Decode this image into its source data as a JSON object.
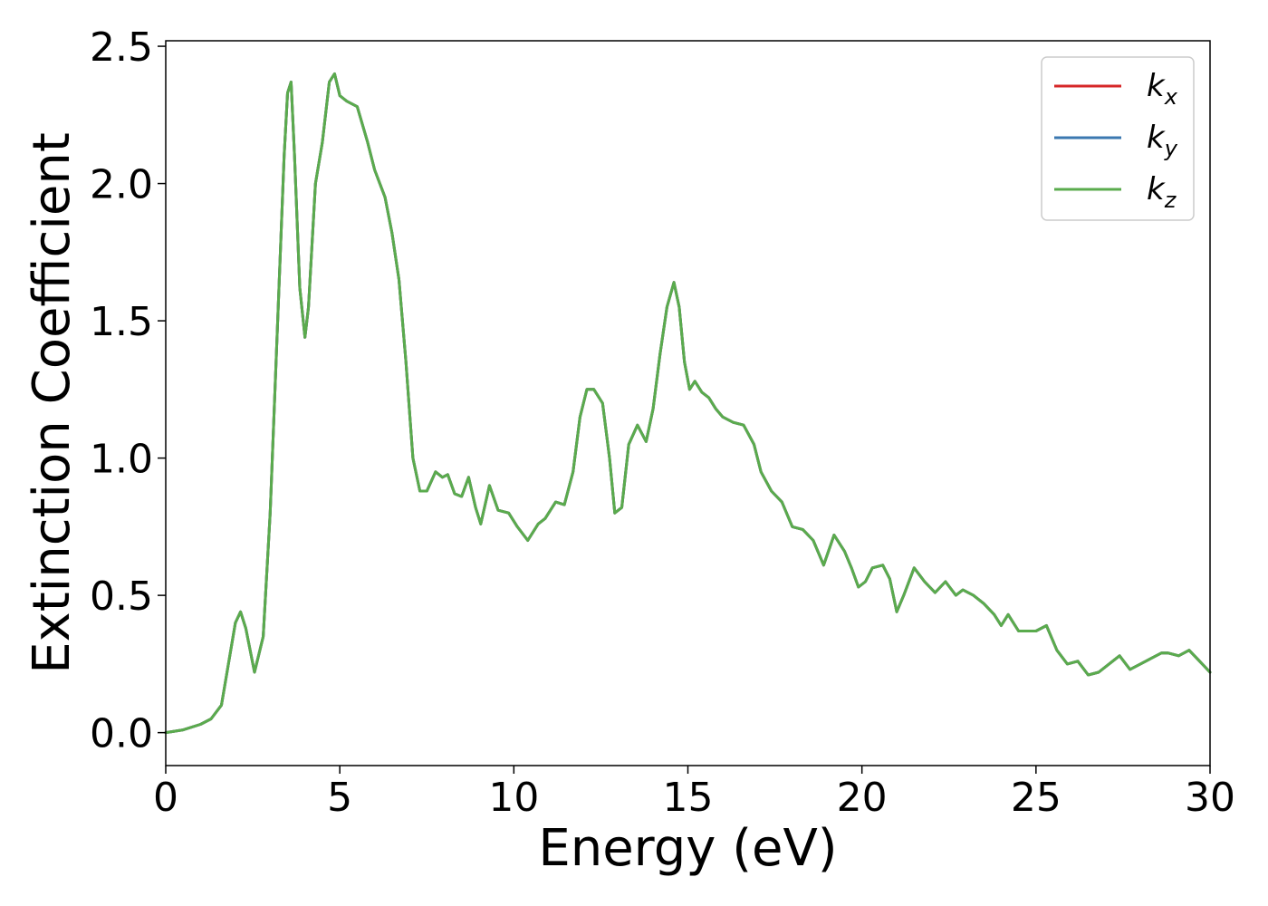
{
  "chart_data": {
    "type": "line",
    "title": "",
    "xlabel": "Energy (eV)",
    "ylabel": "Extinction Coefficient",
    "xlim": [
      0,
      30
    ],
    "ylim": [
      -0.12,
      2.52
    ],
    "xticks": [
      0,
      5,
      10,
      15,
      20,
      25,
      30
    ],
    "yticks": [
      0.0,
      0.5,
      1.0,
      1.5,
      2.0,
      2.5
    ],
    "xtick_labels": [
      "0",
      "5",
      "10",
      "15",
      "20",
      "25",
      "30"
    ],
    "ytick_labels": [
      "0.0",
      "0.5",
      "1.0",
      "1.5",
      "2.0",
      "2.5"
    ],
    "grid": false,
    "legend_position": "top-right",
    "x": [
      0,
      0.5,
      1.0,
      1.3,
      1.6,
      1.8,
      2.0,
      2.15,
      2.3,
      2.55,
      2.8,
      3.0,
      3.2,
      3.4,
      3.5,
      3.6,
      3.7,
      3.85,
      4.0,
      4.1,
      4.3,
      4.5,
      4.7,
      4.85,
      5.0,
      5.2,
      5.5,
      5.8,
      6.0,
      6.3,
      6.5,
      6.7,
      6.9,
      7.1,
      7.3,
      7.5,
      7.75,
      7.95,
      8.1,
      8.3,
      8.5,
      8.7,
      8.9,
      9.05,
      9.3,
      9.55,
      9.85,
      10.1,
      10.4,
      10.7,
      10.9,
      11.2,
      11.45,
      11.7,
      11.9,
      12.1,
      12.3,
      12.55,
      12.75,
      12.9,
      13.1,
      13.3,
      13.55,
      13.8,
      14.0,
      14.2,
      14.4,
      14.6,
      14.75,
      14.9,
      15.05,
      15.2,
      15.4,
      15.6,
      15.8,
      16.0,
      16.3,
      16.6,
      16.9,
      17.1,
      17.4,
      17.7,
      18.0,
      18.3,
      18.6,
      18.9,
      19.2,
      19.5,
      19.7,
      19.9,
      20.1,
      20.3,
      20.6,
      20.8,
      21.0,
      21.2,
      21.5,
      21.8,
      22.1,
      22.4,
      22.7,
      22.9,
      23.2,
      23.5,
      23.8,
      24.0,
      24.2,
      24.5,
      24.8,
      25.0,
      25.3,
      25.6,
      25.9,
      26.2,
      26.5,
      26.8,
      27.1,
      27.4,
      27.7,
      28.0,
      28.3,
      28.6,
      28.8,
      29.1,
      29.4,
      29.7,
      30.0
    ],
    "series": [
      {
        "name": "k_x",
        "color": "#d62728",
        "y": [
          0.0,
          0.01,
          0.03,
          0.05,
          0.1,
          0.25,
          0.4,
          0.44,
          0.38,
          0.22,
          0.35,
          0.8,
          1.45,
          2.1,
          2.33,
          2.37,
          2.1,
          1.62,
          1.44,
          1.55,
          2.0,
          2.15,
          2.37,
          2.4,
          2.32,
          2.3,
          2.28,
          2.15,
          2.05,
          1.95,
          1.82,
          1.65,
          1.35,
          1.0,
          0.88,
          0.88,
          0.95,
          0.93,
          0.94,
          0.87,
          0.86,
          0.93,
          0.82,
          0.76,
          0.9,
          0.81,
          0.8,
          0.75,
          0.7,
          0.76,
          0.78,
          0.84,
          0.83,
          0.95,
          1.15,
          1.25,
          1.25,
          1.2,
          1.0,
          0.8,
          0.82,
          1.05,
          1.12,
          1.06,
          1.18,
          1.38,
          1.55,
          1.64,
          1.55,
          1.35,
          1.25,
          1.28,
          1.24,
          1.22,
          1.18,
          1.15,
          1.13,
          1.12,
          1.05,
          0.95,
          0.88,
          0.84,
          0.75,
          0.74,
          0.7,
          0.61,
          0.72,
          0.66,
          0.6,
          0.53,
          0.55,
          0.6,
          0.61,
          0.56,
          0.44,
          0.5,
          0.6,
          0.55,
          0.51,
          0.55,
          0.5,
          0.52,
          0.5,
          0.47,
          0.43,
          0.39,
          0.43,
          0.37,
          0.37,
          0.37,
          0.39,
          0.3,
          0.25,
          0.26,
          0.21,
          0.22,
          0.25,
          0.28,
          0.23,
          0.25,
          0.27,
          0.29,
          0.29,
          0.28,
          0.3,
          0.26,
          0.22
        ]
      },
      {
        "name": "k_y",
        "color": "#3b78b0",
        "y": [
          0.0,
          0.01,
          0.03,
          0.05,
          0.1,
          0.25,
          0.4,
          0.44,
          0.38,
          0.22,
          0.35,
          0.8,
          1.45,
          2.1,
          2.33,
          2.37,
          2.1,
          1.62,
          1.44,
          1.55,
          2.0,
          2.15,
          2.37,
          2.4,
          2.32,
          2.3,
          2.28,
          2.15,
          2.05,
          1.95,
          1.82,
          1.65,
          1.35,
          1.0,
          0.88,
          0.88,
          0.95,
          0.93,
          0.94,
          0.87,
          0.86,
          0.93,
          0.82,
          0.76,
          0.9,
          0.81,
          0.8,
          0.75,
          0.7,
          0.76,
          0.78,
          0.84,
          0.83,
          0.95,
          1.15,
          1.25,
          1.25,
          1.2,
          1.0,
          0.8,
          0.82,
          1.05,
          1.12,
          1.06,
          1.18,
          1.38,
          1.55,
          1.64,
          1.55,
          1.35,
          1.25,
          1.28,
          1.24,
          1.22,
          1.18,
          1.15,
          1.13,
          1.12,
          1.05,
          0.95,
          0.88,
          0.84,
          0.75,
          0.74,
          0.7,
          0.61,
          0.72,
          0.66,
          0.6,
          0.53,
          0.55,
          0.6,
          0.61,
          0.56,
          0.44,
          0.5,
          0.6,
          0.55,
          0.51,
          0.55,
          0.5,
          0.52,
          0.5,
          0.47,
          0.43,
          0.39,
          0.43,
          0.37,
          0.37,
          0.37,
          0.39,
          0.3,
          0.25,
          0.26,
          0.21,
          0.22,
          0.25,
          0.28,
          0.23,
          0.25,
          0.27,
          0.29,
          0.29,
          0.28,
          0.3,
          0.26,
          0.22
        ]
      },
      {
        "name": "k_z",
        "color": "#5aab4d",
        "y": [
          0.0,
          0.01,
          0.03,
          0.05,
          0.1,
          0.25,
          0.4,
          0.44,
          0.38,
          0.22,
          0.35,
          0.8,
          1.45,
          2.1,
          2.33,
          2.37,
          2.1,
          1.62,
          1.44,
          1.55,
          2.0,
          2.15,
          2.37,
          2.4,
          2.32,
          2.3,
          2.28,
          2.15,
          2.05,
          1.95,
          1.82,
          1.65,
          1.35,
          1.0,
          0.88,
          0.88,
          0.95,
          0.93,
          0.94,
          0.87,
          0.86,
          0.93,
          0.82,
          0.76,
          0.9,
          0.81,
          0.8,
          0.75,
          0.7,
          0.76,
          0.78,
          0.84,
          0.83,
          0.95,
          1.15,
          1.25,
          1.25,
          1.2,
          1.0,
          0.8,
          0.82,
          1.05,
          1.12,
          1.06,
          1.18,
          1.38,
          1.55,
          1.64,
          1.55,
          1.35,
          1.25,
          1.28,
          1.24,
          1.22,
          1.18,
          1.15,
          1.13,
          1.12,
          1.05,
          0.95,
          0.88,
          0.84,
          0.75,
          0.74,
          0.7,
          0.61,
          0.72,
          0.66,
          0.6,
          0.53,
          0.55,
          0.6,
          0.61,
          0.56,
          0.44,
          0.5,
          0.6,
          0.55,
          0.51,
          0.55,
          0.5,
          0.52,
          0.5,
          0.47,
          0.43,
          0.39,
          0.43,
          0.37,
          0.37,
          0.37,
          0.39,
          0.3,
          0.25,
          0.26,
          0.21,
          0.22,
          0.25,
          0.28,
          0.23,
          0.25,
          0.27,
          0.29,
          0.29,
          0.28,
          0.3,
          0.26,
          0.22
        ]
      }
    ],
    "legend": [
      {
        "base": "k",
        "sub": "x",
        "color": "#d62728"
      },
      {
        "base": "k",
        "sub": "y",
        "color": "#3b78b0"
      },
      {
        "base": "k",
        "sub": "z",
        "color": "#5aab4d"
      }
    ]
  }
}
